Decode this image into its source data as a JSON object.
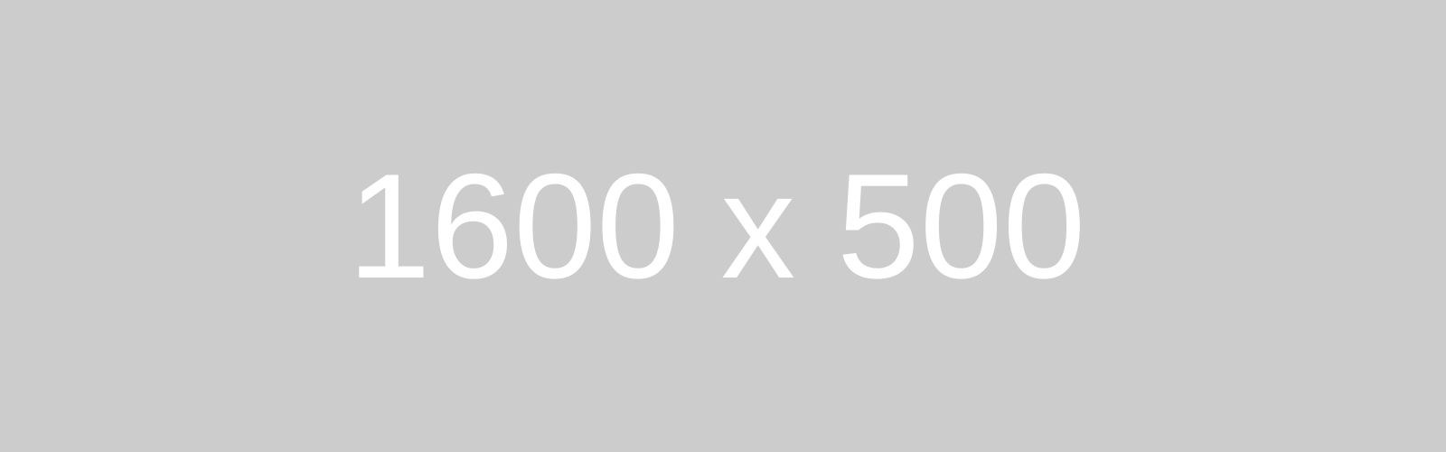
{
  "placeholder": {
    "text": "1600 x 500",
    "background_color": "#cccccc",
    "text_color": "#ffffff"
  }
}
